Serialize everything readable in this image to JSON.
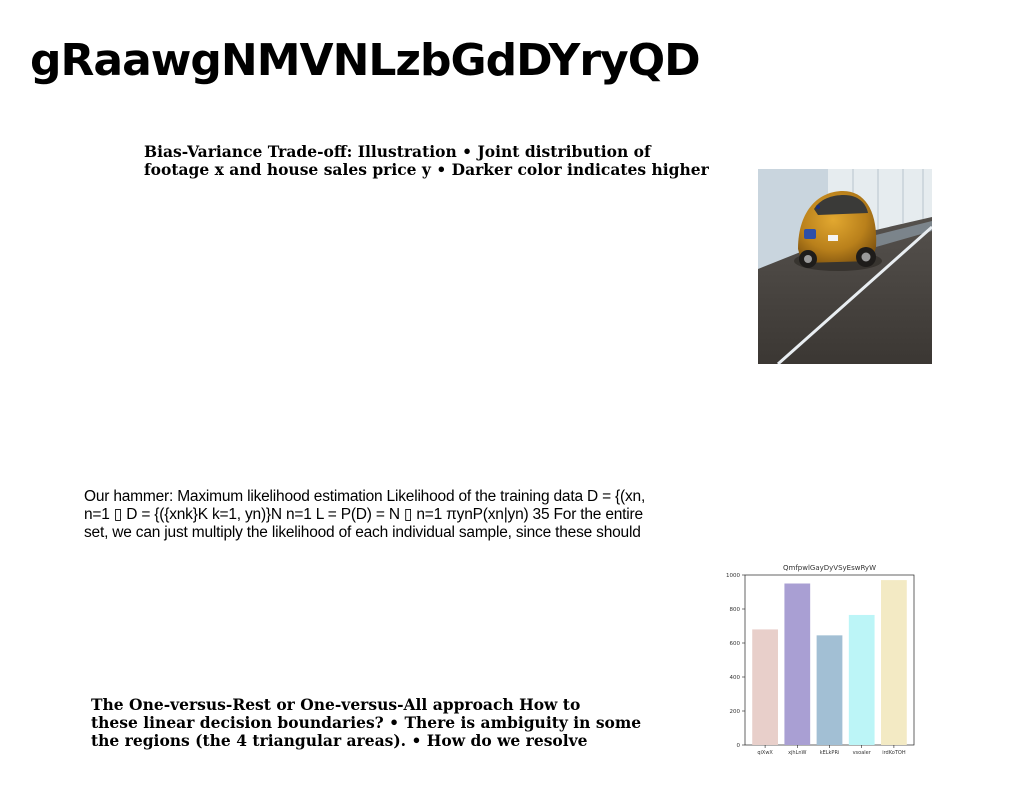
{
  "page": {
    "title": "gRaawgNMVNLzbGdDYryQD"
  },
  "blocks": {
    "bias_variance": "Bias-Variance Trade-off: Illustration • Joint distribution of\nfootage x and house sales price y • Darker color indicates higher",
    "hammer": "Our hammer: Maximum likelihood estimation Likelihood of the training data D = {(xn,\nn=1 ▯ D = {({xnk}K k=1, yn)}N n=1 L = P(D) = N ▯ n=1 πynP(xn|yn) 35 For the entire\nset, we can just multiply the likelihood of each individual sample, since these should",
    "one_vs_rest": "The One-versus-Rest or One-versus-All approach How to\nthese linear decision boundaries? • There is ambiguity in some\nthe regions (the 4 triangular areas). • How do we resolve"
  },
  "image": {
    "subject": "yellow-beetle-car-on-road"
  },
  "chart_data": {
    "type": "bar",
    "title": "QmfpwlGayDyVSyEswRyW",
    "categories": [
      "qiXwX",
      "xjhLnW",
      "kELkPRi",
      "vsoaler",
      "irdKoTOH"
    ],
    "values": [
      680,
      950,
      645,
      765,
      970
    ],
    "colors": [
      "#e8cfca",
      "#a99fd3",
      "#a2bfd4",
      "#bcf5f7",
      "#f3eac4"
    ],
    "ylim": [
      0,
      1000
    ],
    "yticks": [
      0,
      200,
      400,
      600,
      800,
      1000
    ],
    "xlabel": "",
    "ylabel": ""
  }
}
